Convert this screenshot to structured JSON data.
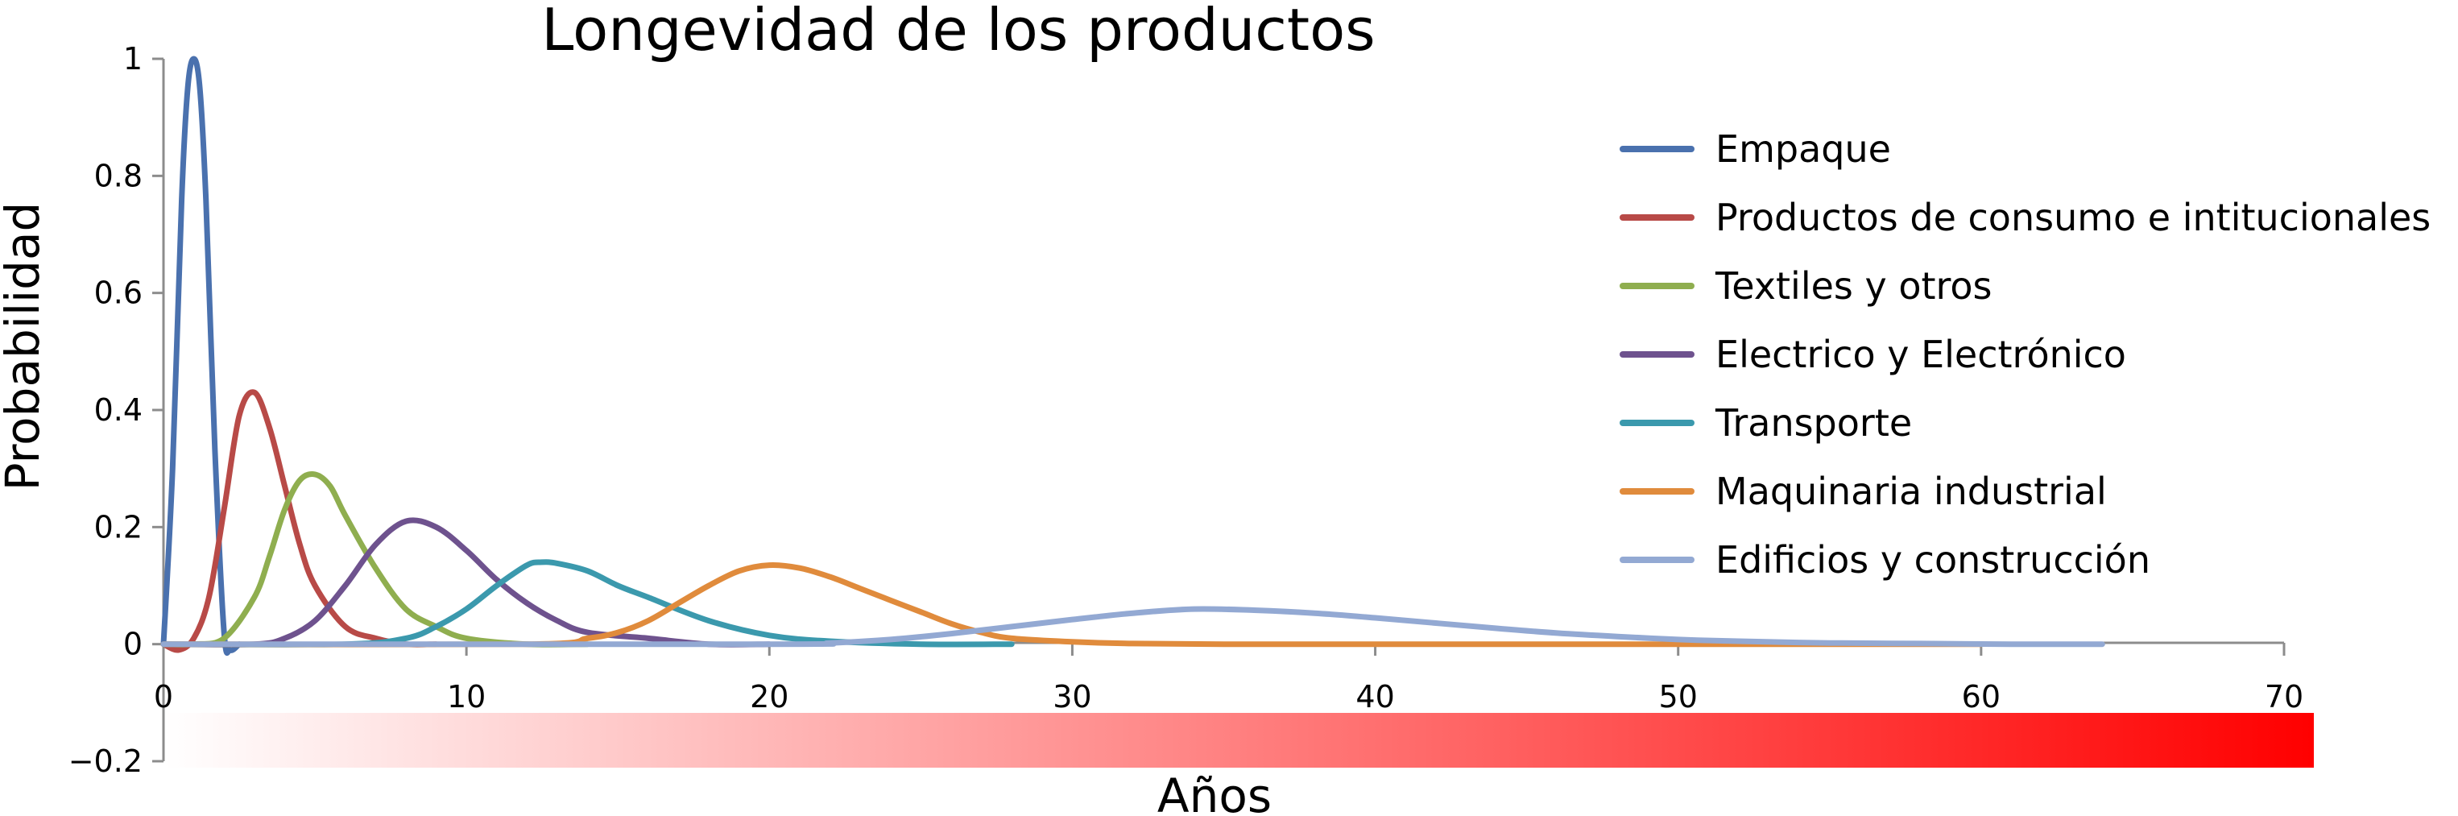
{
  "chart_data": {
    "type": "line",
    "title": "Longevidad de los productos",
    "xlabel": "Años",
    "ylabel": "Probabilidad",
    "xlim": [
      0,
      70
    ],
    "ylim": [
      -0.2,
      1
    ],
    "x_ticks": [
      "0",
      "10",
      "20",
      "30",
      "40",
      "50",
      "60",
      "70"
    ],
    "y_ticks": [
      "−0.2",
      "0",
      "0.2",
      "0.4",
      "0.6",
      "0.8",
      "1"
    ],
    "grid": false,
    "legend_position": "right",
    "color_bar": {
      "from": "#ffffff",
      "to": "#ff0000",
      "x_range": [
        0,
        70
      ]
    },
    "series": [
      {
        "name": "Empaque",
        "color": "#4a71ae",
        "peak_x": 1,
        "peak_y": 1.0,
        "x_end": 2.5,
        "x": [
          0,
          0.3,
          0.6,
          0.8,
          1.0,
          1.2,
          1.4,
          1.7,
          2.0,
          2.2,
          2.5
        ],
        "y": [
          0,
          0.3,
          0.76,
          0.95,
          1.0,
          0.95,
          0.76,
          0.33,
          0.02,
          -0.01,
          0
        ]
      },
      {
        "name": "Productos de consumo e intitucionales",
        "color": "#b84a47",
        "peak_x": 3,
        "peak_y": 0.43,
        "x_end": 9,
        "x": [
          0,
          0.5,
          1,
          1.5,
          2,
          2.5,
          3,
          3.5,
          4,
          4.5,
          5,
          6,
          7,
          8,
          9
        ],
        "y": [
          0,
          -0.01,
          0.01,
          0.08,
          0.23,
          0.39,
          0.43,
          0.37,
          0.27,
          0.17,
          0.1,
          0.03,
          0.01,
          0,
          0
        ]
      },
      {
        "name": "Textiles y otros",
        "color": "#8fae4f",
        "peak_x": 5,
        "peak_y": 0.29,
        "x_end": 14,
        "x": [
          0,
          1,
          2,
          3,
          3.5,
          4,
          4.5,
          5,
          5.5,
          6,
          7,
          8,
          9,
          10,
          12,
          14
        ],
        "y": [
          0,
          0,
          0.01,
          0.08,
          0.15,
          0.23,
          0.28,
          0.29,
          0.27,
          0.22,
          0.13,
          0.06,
          0.03,
          0.01,
          0,
          0
        ]
      },
      {
        "name": "Electrico y Electrónico",
        "color": "#6e528e",
        "peak_x": 8,
        "peak_y": 0.21,
        "x_end": 20,
        "x": [
          0,
          3,
          4,
          5,
          6,
          7,
          8,
          9,
          10,
          11,
          12,
          13,
          14,
          16,
          18,
          20
        ],
        "y": [
          0,
          0,
          0.01,
          0.04,
          0.1,
          0.17,
          0.21,
          0.2,
          0.16,
          0.11,
          0.07,
          0.04,
          0.02,
          0.01,
          0,
          0
        ]
      },
      {
        "name": "Transporte",
        "color": "#3b99ad",
        "peak_x": 12.5,
        "peak_y": 0.14,
        "x_end": 28,
        "x": [
          0,
          6,
          8,
          9,
          10,
          11,
          12,
          12.5,
          13,
          14,
          15,
          16,
          18,
          20,
          22,
          25,
          28
        ],
        "y": [
          0,
          0,
          0.01,
          0.03,
          0.06,
          0.1,
          0.135,
          0.14,
          0.138,
          0.125,
          0.1,
          0.08,
          0.04,
          0.015,
          0.005,
          0,
          0
        ]
      },
      {
        "name": "Maquinaria industrial",
        "color": "#e08b3c",
        "peak_x": 20,
        "peak_y": 0.135,
        "x_end": 60,
        "x": [
          0,
          12,
          14,
          15,
          16,
          17,
          18,
          19,
          20,
          21,
          22,
          23,
          24,
          25,
          26,
          27,
          28,
          30,
          32,
          35,
          40,
          50,
          60
        ],
        "y": [
          0,
          0,
          0.01,
          0.02,
          0.04,
          0.07,
          0.1,
          0.125,
          0.135,
          0.13,
          0.115,
          0.095,
          0.075,
          0.055,
          0.035,
          0.02,
          0.01,
          0.004,
          0.001,
          0,
          0,
          0,
          0
        ]
      },
      {
        "name": "Edificios y construcción",
        "color": "#93a9d3",
        "peak_x": 34,
        "peak_y": 0.06,
        "x_end": 64,
        "x": [
          0,
          20,
          22,
          24,
          26,
          28,
          30,
          32,
          34,
          36,
          38,
          40,
          42,
          44,
          46,
          48,
          50,
          52,
          55,
          58,
          61,
          64
        ],
        "y": [
          0,
          0,
          0.002,
          0.008,
          0.018,
          0.03,
          0.042,
          0.053,
          0.06,
          0.058,
          0.053,
          0.045,
          0.036,
          0.027,
          0.019,
          0.013,
          0.008,
          0.005,
          0.002,
          0.001,
          0,
          0
        ]
      }
    ]
  }
}
